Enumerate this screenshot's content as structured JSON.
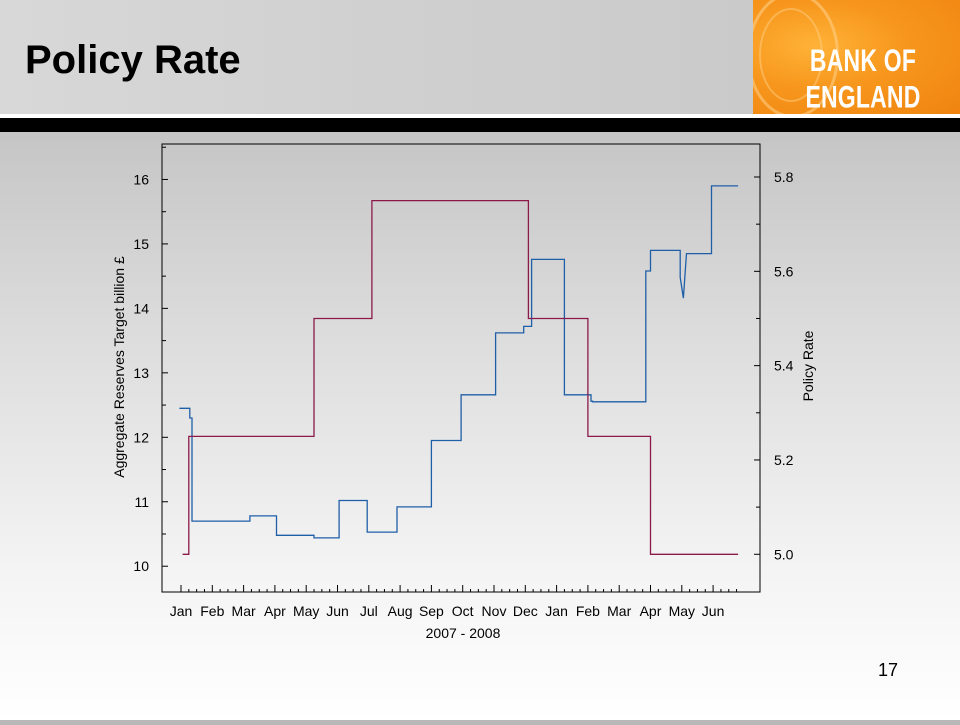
{
  "slide": {
    "title": "Policy Rate",
    "logo_text": "BANK OF ENGLAND",
    "page_number": "17"
  },
  "chart_data": {
    "type": "line",
    "xlabel": "2007 - 2008",
    "ylabel_left": "Aggregate Reserves Target billion £",
    "ylabel_right": "Policy Rate",
    "x_ticks": [
      "Jan",
      "Feb",
      "Mar",
      "Apr",
      "May",
      "Jun",
      "Jul",
      "Aug",
      "Sep",
      "Oct",
      "Nov",
      "Dec",
      "Jan",
      "Feb",
      "Mar",
      "Apr",
      "May",
      "Jun"
    ],
    "ylim_left": [
      9.6,
      16.55
    ],
    "ylim_right": [
      4.92,
      5.87
    ],
    "y_ticks_left": [
      "10",
      "11",
      "12",
      "13",
      "14",
      "15",
      "16"
    ],
    "y_ticks_right": [
      "5.0",
      "5.2",
      "5.4",
      "5.6",
      "5.8"
    ],
    "x_range_months": [
      0,
      18
    ],
    "series": [
      {
        "axis": "left",
        "color": "#1f5fa8",
        "points": [
          [
            -0.05,
            12.45
          ],
          [
            0.28,
            12.45
          ],
          [
            0.28,
            12.3
          ],
          [
            0.35,
            12.3
          ],
          [
            0.35,
            10.7
          ],
          [
            2.2,
            10.7
          ],
          [
            2.2,
            10.78
          ],
          [
            3.05,
            10.78
          ],
          [
            3.05,
            10.48
          ],
          [
            4.25,
            10.48
          ],
          [
            4.25,
            10.44
          ],
          [
            5.05,
            10.44
          ],
          [
            5.05,
            11.02
          ],
          [
            5.95,
            11.02
          ],
          [
            5.95,
            10.53
          ],
          [
            6.9,
            10.53
          ],
          [
            6.9,
            10.92
          ],
          [
            8.0,
            10.92
          ],
          [
            8.0,
            11.95
          ],
          [
            8.95,
            11.95
          ],
          [
            8.95,
            12.66
          ],
          [
            10.05,
            12.66
          ],
          [
            10.05,
            13.62
          ],
          [
            10.95,
            13.62
          ],
          [
            10.95,
            13.72
          ],
          [
            11.2,
            13.72
          ],
          [
            11.2,
            14.76
          ],
          [
            12.25,
            14.76
          ],
          [
            12.25,
            12.66
          ],
          [
            13.1,
            12.66
          ],
          [
            13.1,
            12.56
          ],
          [
            13.15,
            12.56
          ],
          [
            13.15,
            12.55
          ],
          [
            14.85,
            12.55
          ],
          [
            14.85,
            14.58
          ],
          [
            15.0,
            14.58
          ],
          [
            15.0,
            14.9
          ],
          [
            15.95,
            14.9
          ],
          [
            15.95,
            14.48
          ],
          [
            16.05,
            14.16
          ],
          [
            16.1,
            14.5
          ],
          [
            16.15,
            14.85
          ],
          [
            16.95,
            14.85
          ],
          [
            16.95,
            15.9
          ],
          [
            17.8,
            15.9
          ]
        ]
      },
      {
        "axis": "right",
        "color": "#8b1a4a",
        "points": [
          [
            0.05,
            5.0
          ],
          [
            0.25,
            5.0
          ],
          [
            0.25,
            5.25
          ],
          [
            4.25,
            5.25
          ],
          [
            4.25,
            5.5
          ],
          [
            6.1,
            5.5
          ],
          [
            6.1,
            5.75
          ],
          [
            11.1,
            5.75
          ],
          [
            11.1,
            5.5
          ],
          [
            13.0,
            5.5
          ],
          [
            13.0,
            5.25
          ],
          [
            15.0,
            5.25
          ],
          [
            15.0,
            5.0
          ],
          [
            17.8,
            5.0
          ]
        ]
      }
    ]
  },
  "colors": {
    "logo_orange": "#f7961c",
    "reserves_line": "#1f5fa8",
    "policy_rate_line": "#8b1a4a"
  }
}
